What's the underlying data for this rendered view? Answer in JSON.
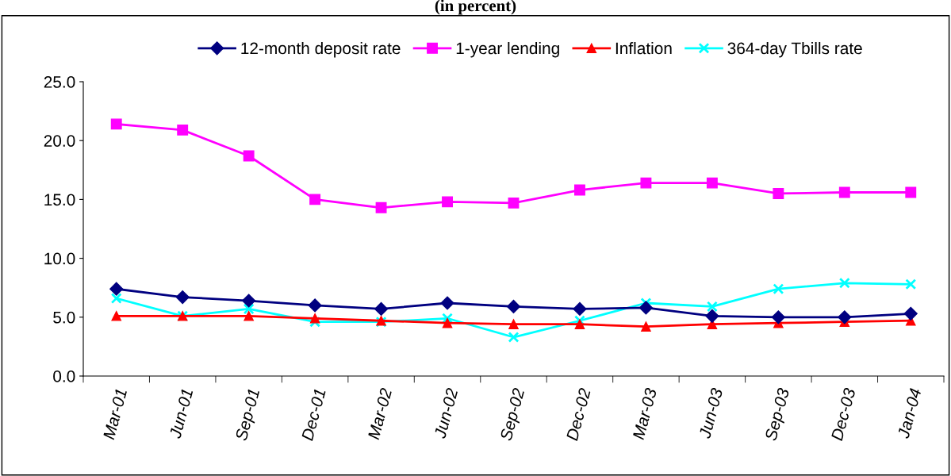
{
  "chart_data": {
    "type": "line",
    "title": "(in percent)",
    "categories": [
      "Mar-01",
      "Jun-01",
      "Sep-01",
      "Dec-01",
      "Mar-02",
      "Jun-02",
      "Sep-02",
      "Dec-02",
      "Mar-03",
      "Jun-03",
      "Sep-03",
      "Dec-03",
      "Jan-04"
    ],
    "series": [
      {
        "name": "12-month deposit rate",
        "color": "#000080",
        "marker": "diamond",
        "values": [
          7.4,
          6.7,
          6.4,
          6.0,
          5.7,
          6.2,
          5.9,
          5.7,
          5.8,
          5.1,
          5.0,
          5.0,
          5.3
        ]
      },
      {
        "name": "1-year lending",
        "color": "#ff00ff",
        "marker": "square",
        "values": [
          21.4,
          20.9,
          18.7,
          15.0,
          14.3,
          14.8,
          14.7,
          15.8,
          16.4,
          16.4,
          15.5,
          15.6,
          15.6
        ]
      },
      {
        "name": "Inflation",
        "color": "#ff0000",
        "marker": "triangle",
        "values": [
          5.1,
          5.1,
          5.1,
          4.9,
          4.7,
          4.5,
          4.4,
          4.4,
          4.2,
          4.4,
          4.5,
          4.6,
          4.7
        ]
      },
      {
        "name": "364-day Tbills rate",
        "color": "#00ffff",
        "marker": "cross",
        "values": [
          6.6,
          5.1,
          5.7,
          4.6,
          4.6,
          4.9,
          3.3,
          4.7,
          6.2,
          5.9,
          7.4,
          7.9,
          7.8
        ]
      }
    ],
    "ylim": [
      0,
      25
    ],
    "yticks": [
      {
        "value": 0,
        "label": "0.0"
      },
      {
        "value": 5,
        "label": "5.0"
      },
      {
        "value": 10,
        "label": "10.0"
      },
      {
        "value": 15,
        "label": "15.0"
      },
      {
        "value": 20,
        "label": "20.0"
      },
      {
        "value": 25,
        "label": "25.0"
      }
    ],
    "grid": false,
    "legend": "top",
    "line_style": "solid"
  }
}
